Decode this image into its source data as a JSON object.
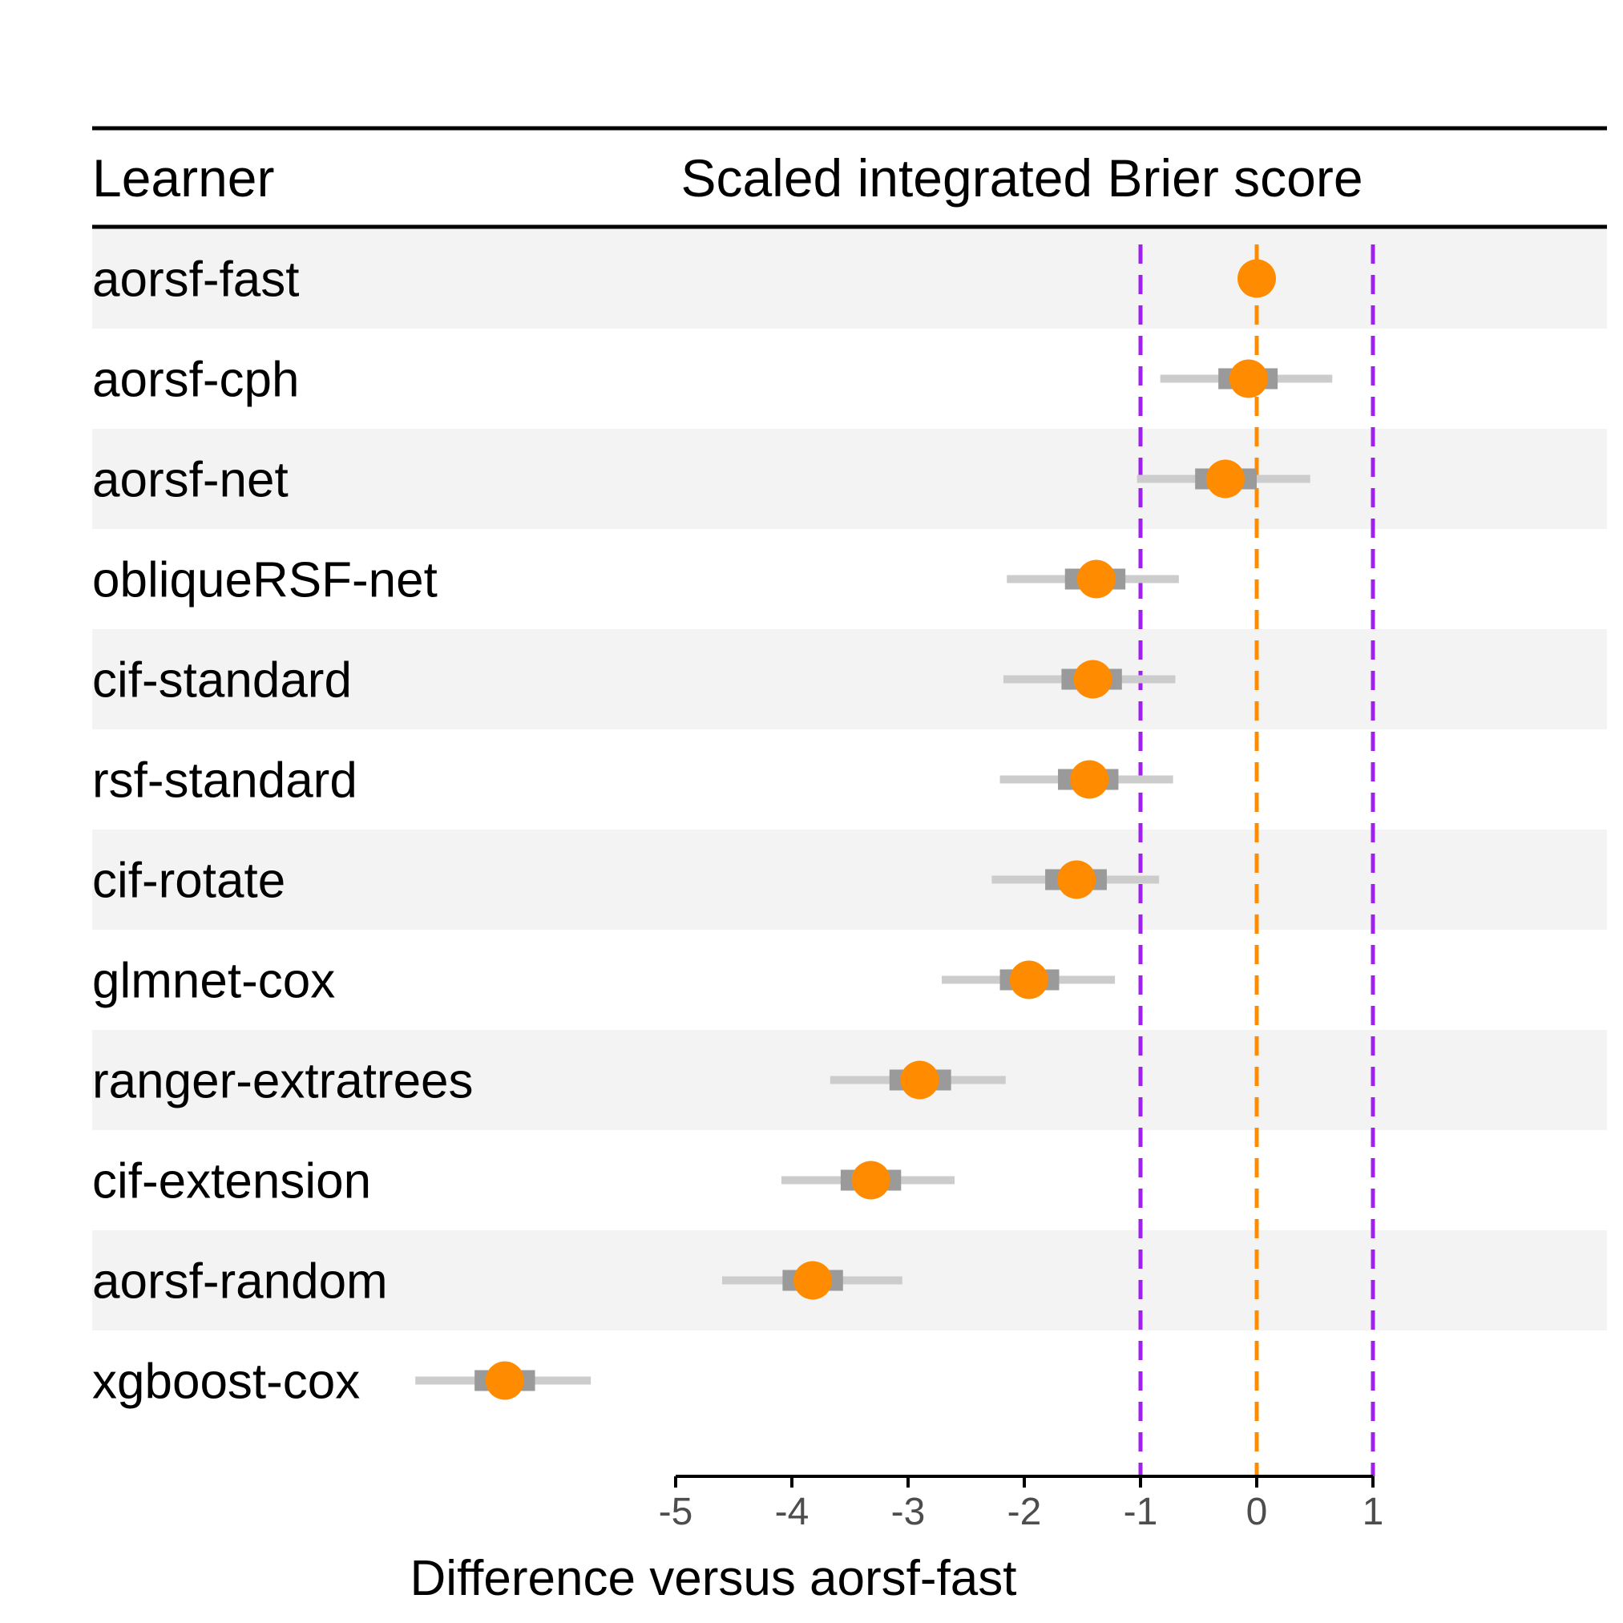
{
  "header": {
    "learner_col": "Learner",
    "metric_col": "Scaled integrated Brier score"
  },
  "colors": {
    "point": "#ff8c00",
    "inner_interval": "#9a9a9a",
    "outer_interval": "#cccccc",
    "reference_line": "#ff8c00",
    "equivalence_lines": "#a020f0",
    "row_shade": "#f3f3f3",
    "axis": "#000000",
    "tick_label": "#4d4d4d"
  },
  "chart_data": {
    "type": "forest",
    "xlabel": "Difference versus aorsf-fast",
    "xlim": [
      -5,
      1
    ],
    "ticks": [
      -5,
      -4,
      -3,
      -2,
      -1,
      0,
      1
    ],
    "tick_labels": [
      "-5",
      "-4",
      "-3",
      "-2",
      "-1",
      "0",
      "1"
    ],
    "reference_line": 0,
    "equivalence_lines": [
      -1,
      1
    ],
    "rows": [
      {
        "learner": "aorsf-fast",
        "estimate": 0.0,
        "inner": [
          0.0,
          0.0
        ],
        "outer": [
          0.0,
          0.0
        ]
      },
      {
        "learner": "aorsf-cph",
        "estimate": -0.07,
        "inner": [
          -0.33,
          0.18
        ],
        "outer": [
          -0.83,
          0.65
        ]
      },
      {
        "learner": "aorsf-net",
        "estimate": -0.27,
        "inner": [
          -0.53,
          0.0
        ],
        "outer": [
          -1.03,
          0.46
        ]
      },
      {
        "learner": "obliqueRSF-net",
        "estimate": -1.38,
        "inner": [
          -1.65,
          -1.13
        ],
        "outer": [
          -2.15,
          -0.67
        ]
      },
      {
        "learner": "cif-standard",
        "estimate": -1.41,
        "inner": [
          -1.68,
          -1.16
        ],
        "outer": [
          -2.18,
          -0.7
        ]
      },
      {
        "learner": "rsf-standard",
        "estimate": -1.44,
        "inner": [
          -1.71,
          -1.19
        ],
        "outer": [
          -2.21,
          -0.72
        ]
      },
      {
        "learner": "cif-rotate",
        "estimate": -1.55,
        "inner": [
          -1.82,
          -1.29
        ],
        "outer": [
          -2.28,
          -0.84
        ]
      },
      {
        "learner": "glmnet-cox",
        "estimate": -1.96,
        "inner": [
          -2.21,
          -1.7
        ],
        "outer": [
          -2.71,
          -1.22
        ]
      },
      {
        "learner": "ranger-extratrees",
        "estimate": -2.9,
        "inner": [
          -3.16,
          -2.63
        ],
        "outer": [
          -3.67,
          -2.16
        ]
      },
      {
        "learner": "cif-extension",
        "estimate": -3.32,
        "inner": [
          -3.58,
          -3.06
        ],
        "outer": [
          -4.09,
          -2.6
        ]
      },
      {
        "learner": "aorsf-random",
        "estimate": -3.82,
        "inner": [
          -4.08,
          -3.56
        ],
        "outer": [
          -4.6,
          -3.05
        ]
      },
      {
        "learner": "xgboost-cox",
        "estimate": -6.47,
        "inner": [
          -6.73,
          -6.21
        ],
        "outer": [
          -7.24,
          -5.73
        ]
      }
    ]
  }
}
